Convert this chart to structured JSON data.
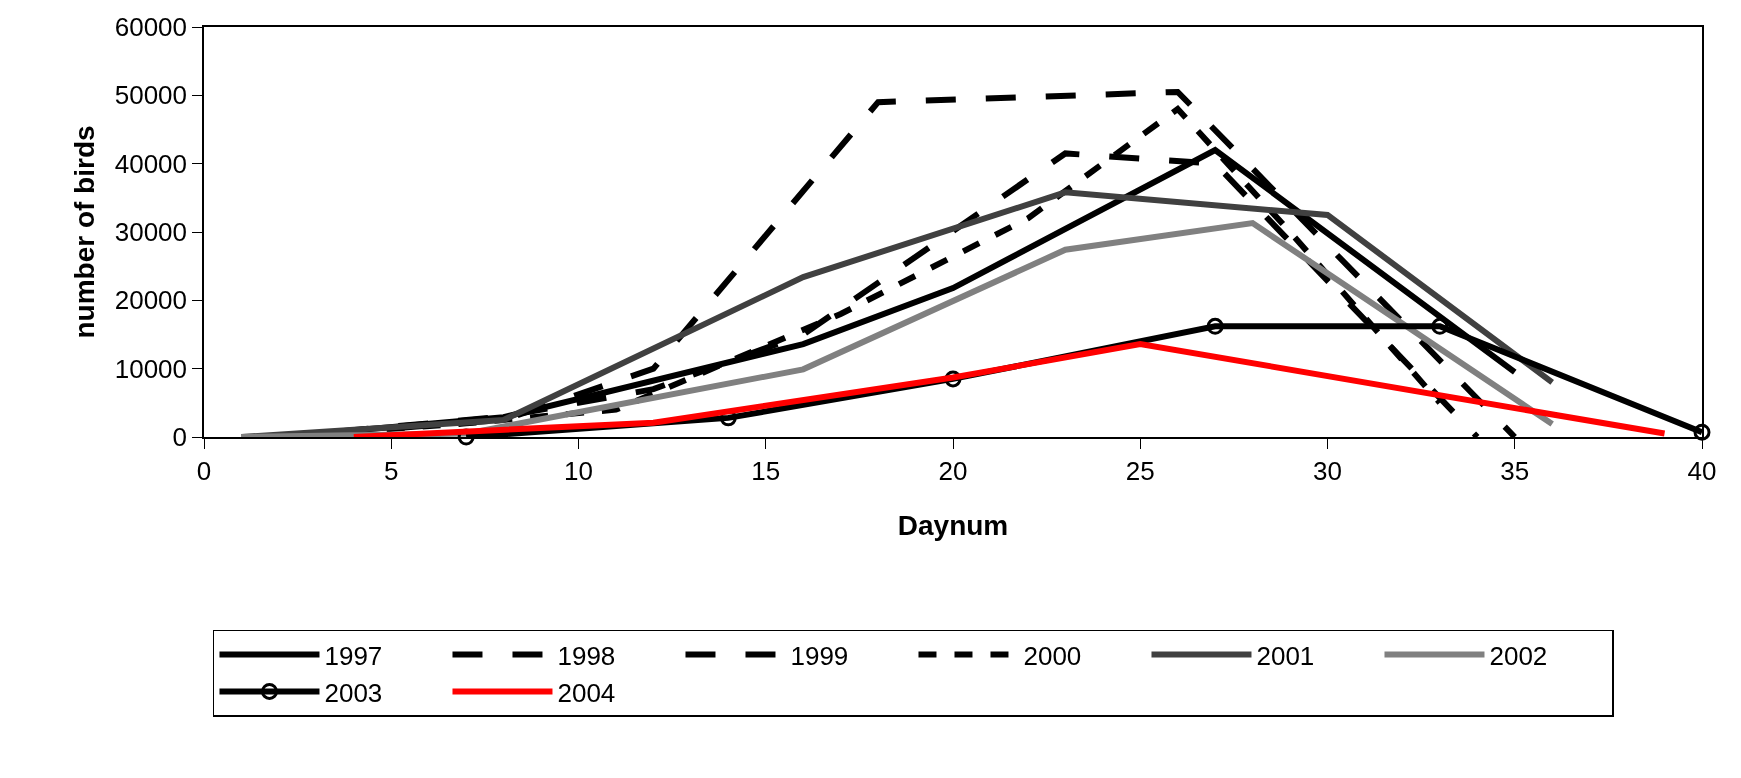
{
  "chart_data": {
    "type": "line",
    "xlabel": "Daynum",
    "ylabel": "number of birds",
    "xlim": [
      0,
      40
    ],
    "xticks": [
      0,
      5,
      10,
      15,
      20,
      25,
      30,
      35,
      40
    ],
    "ylim": [
      0,
      60000
    ],
    "yticks": [
      0,
      10000,
      20000,
      30000,
      40000,
      50000,
      60000
    ],
    "legend": "bottom",
    "series": [
      {
        "name": "1997",
        "color": "#000000",
        "line_style": "solid",
        "marker": "none",
        "x": [
          2,
          8,
          16,
          20,
          27,
          35
        ],
        "values": [
          0,
          2900,
          13600,
          21800,
          42000,
          9500
        ]
      },
      {
        "name": "1998",
        "color": "#000000",
        "line_style": "dashed",
        "marker": "none",
        "x": [
          2,
          8,
          12,
          18,
          26,
          35
        ],
        "values": [
          0,
          2500,
          10000,
          49000,
          50500,
          0
        ]
      },
      {
        "name": "1999",
        "color": "#000000",
        "line_style": "dashed",
        "marker": "none",
        "x": [
          2,
          8,
          12,
          16,
          23,
          27,
          34
        ],
        "values": [
          0,
          3000,
          7000,
          15000,
          41500,
          40000,
          0
        ]
      },
      {
        "name": "2000",
        "color": "#000000",
        "line_style": "dotted",
        "marker": "none",
        "x": [
          2,
          7,
          11,
          17,
          22,
          26,
          29,
          33
        ],
        "values": [
          0,
          2000,
          4000,
          18000,
          32000,
          48000,
          30000,
          5000
        ]
      },
      {
        "name": "2001",
        "color": "#404040",
        "line_style": "solid",
        "marker": "none",
        "x": [
          1,
          8,
          16,
          23,
          30,
          36
        ],
        "values": [
          0,
          2500,
          23400,
          35800,
          32500,
          8000
        ]
      },
      {
        "name": "2002",
        "color": "#808080",
        "line_style": "solid",
        "marker": "none",
        "x": [
          1,
          7,
          16,
          23,
          28,
          36
        ],
        "values": [
          0,
          500,
          9900,
          27400,
          31300,
          1900
        ]
      },
      {
        "name": "2003",
        "color": "#000000",
        "line_style": "solid",
        "marker": "circle",
        "x": [
          7,
          14,
          20,
          27,
          33,
          40
        ],
        "values": [
          0,
          2800,
          8500,
          16200,
          16200,
          700
        ]
      },
      {
        "name": "2004",
        "color": "#ff0000",
        "line_style": "solid",
        "marker": "none",
        "x": [
          4,
          12,
          20,
          25,
          39
        ],
        "values": [
          0,
          2100,
          8700,
          13600,
          500
        ]
      }
    ]
  }
}
